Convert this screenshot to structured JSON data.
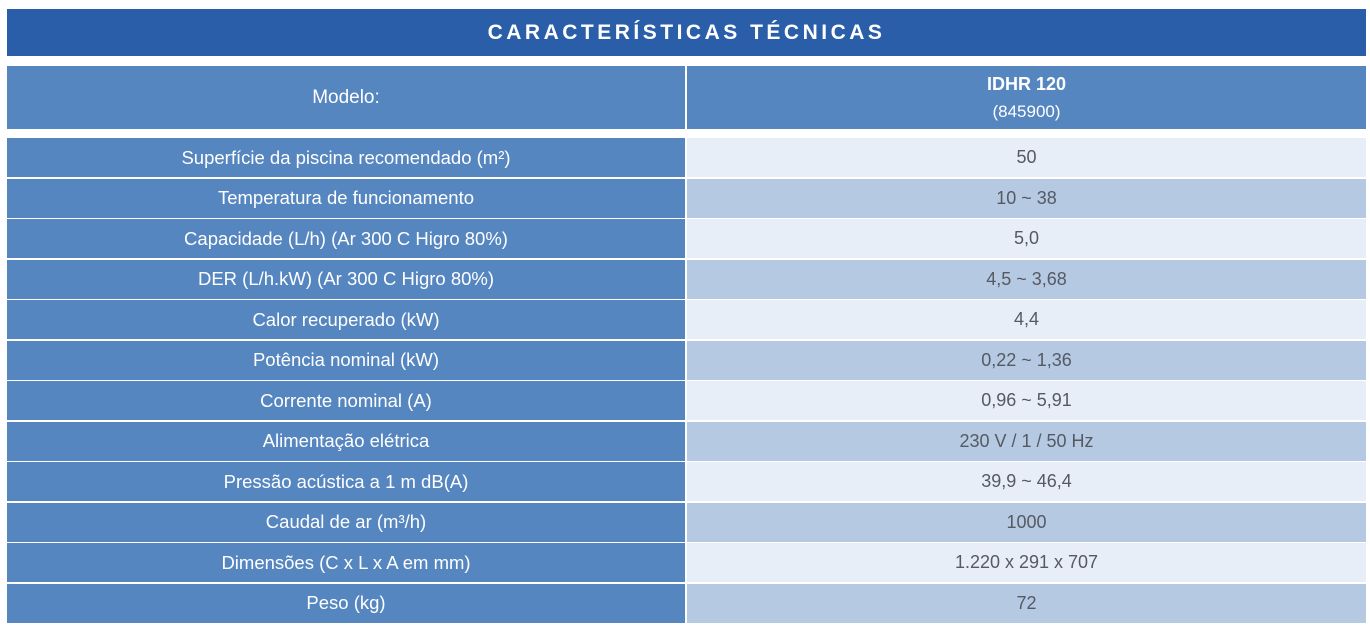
{
  "title": "CARACTERÍSTICAS TÉCNICAS",
  "model": {
    "label": "Modelo:",
    "name": "IDHR 120",
    "code": "(845900)"
  },
  "rows": [
    {
      "label": "Superfície da piscina recomendado (m²)",
      "value": "50"
    },
    {
      "label": "Temperatura de funcionamento",
      "value": "10 ~ 38"
    },
    {
      "label": "Capacidade (L/h) (Ar 300 C Higro 80%)",
      "value": "5,0"
    },
    {
      "label": "DER (L/h.kW) (Ar 300 C Higro 80%)",
      "value": "4,5 ~ 3,68"
    },
    {
      "label": "Calor recuperado (kW)",
      "value": "4,4"
    },
    {
      "label": "Potência nominal (kW)",
      "value": "0,22 ~ 1,36"
    },
    {
      "label": "Corrente nominal (A)",
      "value": "0,96 ~ 5,91"
    },
    {
      "label": "Alimentação elétrica",
      "value": "230 V / 1 / 50 Hz"
    },
    {
      "label": "Pressão acústica a 1 m dB(A)",
      "value": "39,9 ~ 46,4"
    },
    {
      "label": "Caudal de ar (m³/h)",
      "value": "1000"
    },
    {
      "label": "Dimensões (C x L x A em mm)",
      "value": "1.220 x 291 x 707"
    },
    {
      "label": "Peso (kg)",
      "value": "72"
    }
  ]
}
